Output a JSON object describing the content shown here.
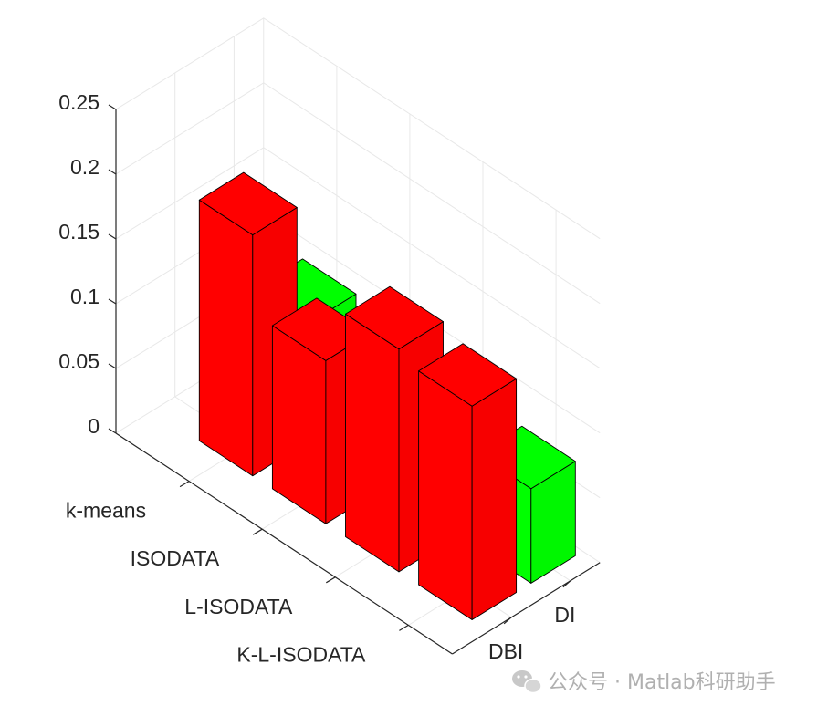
{
  "chart_data": {
    "type": "bar3d",
    "categories": [
      "k-means",
      "ISODATA",
      "L-ISODATA",
      "K-L-ISODATA"
    ],
    "series": [
      {
        "name": "DBI",
        "color": "#ff0000",
        "values": [
          0.186,
          0.126,
          0.172,
          0.165
        ]
      },
      {
        "name": "DI",
        "color": "#00ff00",
        "values": [
          0.091,
          0.079,
          0.038,
          0.073
        ]
      }
    ],
    "zlim": [
      0,
      0.25
    ],
    "zticks": [
      "0",
      "0.05",
      "0.1",
      "0.15",
      "0.2",
      "0.25"
    ],
    "grid": true
  },
  "watermark": {
    "text": "公众号 · Matlab科研助手",
    "icon": "wechat-icon"
  }
}
